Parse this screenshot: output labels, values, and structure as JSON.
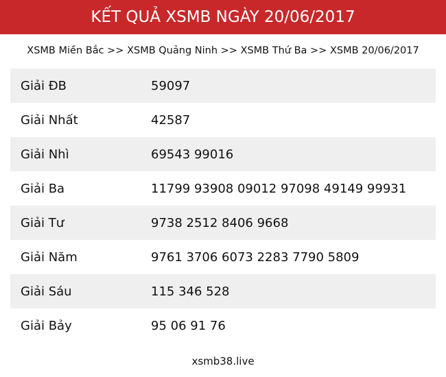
{
  "header": {
    "title": "KẾT QUẢ XSMB NGÀY 20/06/2017",
    "color": "#c8282a"
  },
  "breadcrumb": "XSMB Miền Bắc >> XSMB Quảng Ninh >> XSMB Thứ Ba >> XSMB 20/06/2017",
  "prizes": [
    {
      "label": "Giải ĐB",
      "value": "59097"
    },
    {
      "label": "Giải Nhất",
      "value": "42587"
    },
    {
      "label": "Giải Nhì",
      "value": "69543 99016"
    },
    {
      "label": "Giải Ba",
      "value": "11799 93908 09012 97098 49149 99931"
    },
    {
      "label": "Giải Tư",
      "value": "9738 2512 8406 9668"
    },
    {
      "label": "Giải Năm",
      "value": "9761 3706 6073 2283 7790 5809"
    },
    {
      "label": "Giải Sáu",
      "value": "115 346 528"
    },
    {
      "label": "Giải Bảy",
      "value": "95 06 91 76"
    }
  ],
  "footer": "xsmb38.live"
}
